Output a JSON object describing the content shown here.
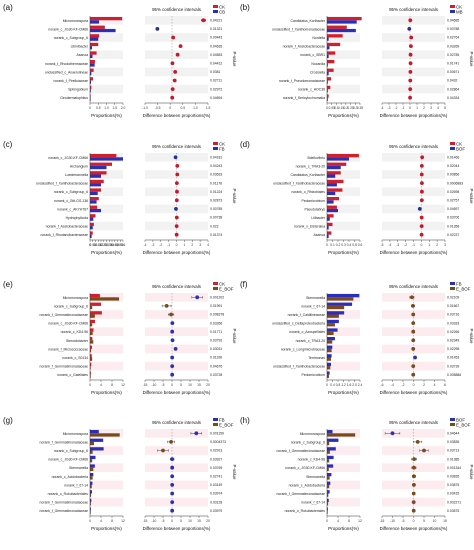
{
  "colors": {
    "red": "#d0202e",
    "blue": "#2b2fb8",
    "brown": "#7a4a1c",
    "pink": "#fbe3e8",
    "gray": "#ececec",
    "sig": "#e14a4a",
    "nonsig": "#444444",
    "ci_dot_left": "#c6182c",
    "ci_dot_right": "#26309b"
  },
  "chart_data": [
    {
      "panel": "(a)",
      "type": "bar",
      "legend": [
        "CK",
        "CB"
      ],
      "ci_title": "95% confidence intervals",
      "x_label": "Proportions(%)",
      "ci_x_label": "Difference between proportions(%)",
      "pvalue_label": "P-value",
      "categories": [
        "Micromonospora",
        "norank_c_JG30-KF-CM66",
        "norank_c_Subgroup_6",
        "Libinibacter",
        "Asanoa",
        "norank_f_Rhodothermaceae",
        "unclassified_c_Anaerolineae",
        "norank_f_Pirellulaceae",
        "Sphingobium",
        "Geodermatophilus"
      ],
      "series": [
        {
          "name": "CK",
          "values": [
            1.95,
            0.9,
            0.55,
            0.5,
            0.4,
            0.3,
            0.22,
            0.18,
            0.08,
            0.04
          ]
        },
        {
          "name": "CB",
          "values": [
            0.55,
            1.55,
            0.5,
            0.12,
            0.15,
            0.28,
            0.08,
            0.06,
            0.05,
            0.03
          ]
        }
      ],
      "xlim": [
        0,
        2.0
      ],
      "xticks": [
        "0",
        "0.5",
        "1.0",
        "1.5",
        "2.0"
      ],
      "ci": [
        1.4,
        -0.65,
        0.05,
        0.38,
        0.25,
        0.02,
        0.14,
        0.12,
        0.03,
        0.01
      ],
      "ci_err": [
        0.1,
        0.06,
        0.05,
        0.05,
        0.05,
        0.04,
        0.04,
        0.04,
        0.02,
        0.02
      ],
      "ci_xlim": [
        -1.2,
        1.6
      ],
      "ci_xticks": [
        "-1.0",
        "-0.5",
        "0",
        "0.5",
        "1.0",
        "1.5"
      ],
      "pvalues": [
        "0.04221",
        "0.01321",
        "0.00443",
        "0.04635",
        "0.04553",
        "0.04412",
        "0.0381",
        "0.02711",
        "0.02972",
        "0.04694"
      ],
      "sig": [
        true,
        true,
        true,
        true,
        true,
        true,
        true,
        true,
        true,
        true
      ]
    },
    {
      "panel": "(b)",
      "type": "bar",
      "legend": [
        "CK",
        "MB"
      ],
      "ci_title": "95% confidence intervals",
      "x_label": "Proportions(%)",
      "ci_x_label": "Difference between proportions(%)",
      "pvalue_label": "P-value",
      "categories": [
        "Candidatus_Koribacter",
        "unclassified_f_Xanthomonadaceae",
        "Nordella",
        "norank_f_Acetobacteraceae",
        "norank_c_SBR1",
        "Nocardia",
        "Crossiella",
        "norank_f_Pseudomonadaceae",
        "norank_c_HOC36",
        "norank_f_Sericytochromatia"
      ],
      "series": [
        {
          "name": "CK",
          "values": [
            0.42,
            0.24,
            0.19,
            0.16,
            0.1,
            0.09,
            0.08,
            0.05,
            0.04,
            0.02
          ]
        },
        {
          "name": "MB",
          "values": [
            0.36,
            0.35,
            0.02,
            0.03,
            0.02,
            0.01,
            0.02,
            0.01,
            0.01,
            0.01
          ]
        }
      ],
      "xlim": [
        0,
        0.4
      ],
      "xticks": [
        "0",
        "0.05",
        "0.1",
        "0.15",
        "0.2",
        "0.25",
        "0.3",
        "0.35"
      ],
      "ci": [
        0.04,
        -0.1,
        0.17,
        0.13,
        0.08,
        0.08,
        0.06,
        0.04,
        0.03,
        0.01
      ],
      "ci_err": [
        0.03,
        0.03,
        0.02,
        0.02,
        0.02,
        0.02,
        0.02,
        0.02,
        0.02,
        0.01
      ],
      "ci_xlim": [
        -4,
        5
      ],
      "ci_xticks": [
        "-4",
        "-3",
        "-2",
        "-1",
        "0",
        "1",
        "2",
        "3",
        "4",
        "5"
      ],
      "pvalues": [
        "0.04685",
        "0.00788",
        "0.02764",
        "0.03269",
        "0.02785",
        "0.01741",
        "0.00671",
        "0.0432",
        "0.02864",
        "0.04334"
      ],
      "sig": [
        true,
        true,
        true,
        true,
        true,
        true,
        true,
        true,
        true,
        true
      ]
    },
    {
      "panel": "(c)",
      "type": "bar",
      "legend": [
        "CK",
        "FB"
      ],
      "ci_title": "95% confidence intervals",
      "x_label": "Proportions(%)",
      "ci_x_label": "Difference between proportions(%)",
      "pvalue_label": "P-value",
      "categories": [
        "norank_c_JG30-KF-CM66",
        "Archangium",
        "Luedemannella",
        "unclassified_f_Xanthobacteraceae",
        "norank_c_Subgroup_6",
        "norank_c_Gitt-GS-136",
        "norank_c_AKYH767",
        "Hydrophyticola",
        "norank_f_Acetobacteraceae",
        "norank_f_Rhodanobacteraceae"
      ],
      "series": [
        {
          "name": "CK",
          "values": [
            0.48,
            0.4,
            0.3,
            0.25,
            0.2,
            0.16,
            0.13,
            0.1,
            0.07,
            0.05
          ]
        },
        {
          "name": "FB",
          "values": [
            0.6,
            0.3,
            0.2,
            0.2,
            0.14,
            0.12,
            0.2,
            0.06,
            0.05,
            0.03
          ]
        }
      ],
      "xlim": [
        0,
        0.6
      ],
      "xticks": [
        "0",
        "0.05",
        "0.1",
        "0.15",
        "0.2",
        "0.25",
        "0.3",
        "0.35",
        "0.4",
        "0.45",
        "0.5",
        "0.55",
        "0.6"
      ],
      "ci": [
        -0.12,
        0.1,
        0.1,
        0.05,
        0.06,
        0.04,
        -0.07,
        0.04,
        0.02,
        0.02
      ],
      "ci_err": [
        0.04,
        0.03,
        0.03,
        0.02,
        0.02,
        0.02,
        0.02,
        0.02,
        0.02,
        0.01
      ],
      "ci_xlim": [
        -4,
        4
      ],
      "ci_xticks": [
        "-4",
        "-3",
        "-2",
        "-1",
        "0",
        "1",
        "2",
        "3",
        "4"
      ],
      "pvalues": [
        "0.04181",
        "0.04243",
        "0.03633",
        "0.01178",
        "0.01224",
        "0.02873",
        "0.00785",
        "0.00738",
        "0.022",
        "0.01374"
      ],
      "sig": [
        true,
        true,
        true,
        true,
        true,
        true,
        true,
        true,
        true,
        true
      ]
    },
    {
      "panel": "(d)",
      "type": "bar",
      "legend": [
        "CK",
        "BOF"
      ],
      "ci_title": "95% confidence intervals",
      "x_label": "Proportions(%)",
      "ci_x_label": "Difference between proportions(%)",
      "pvalue_label": "P-value",
      "categories": [
        "Bdellovibrio",
        "norank_c_TRA3-20",
        "Candidatus_Koribacter",
        "unclassified_f_Xanthobacteraceae",
        "norank_o_Rhizobiales",
        "Pedomicrobium",
        "Pseudolabrys",
        "Lilibacter",
        "norank_o_Elsteralea",
        "Asanoa"
      ],
      "series": [
        {
          "name": "CK",
          "values": [
            0.58,
            0.35,
            0.25,
            0.3,
            0.28,
            0.22,
            0.18,
            0.12,
            0.1,
            0.08
          ]
        },
        {
          "name": "BOF",
          "values": [
            0.4,
            0.25,
            0.15,
            0.18,
            0.15,
            0.12,
            0.2,
            0.05,
            0.03,
            0.03
          ]
        }
      ],
      "xlim": [
        0,
        0.6
      ],
      "xticks": [
        "0",
        "0.1",
        "0.2",
        "0.3",
        "0.4",
        "0.5",
        "0.6"
      ],
      "ci": [
        0.1,
        0.06,
        0.05,
        0.07,
        0.07,
        0.06,
        -0.2,
        0.04,
        0.04,
        0.03
      ],
      "ci_err": [
        0.04,
        0.03,
        0.03,
        0.03,
        0.03,
        0.03,
        0.03,
        0.02,
        0.02,
        0.02
      ],
      "ci_xlim": [
        -5,
        3
      ],
      "ci_xticks": [
        "-5",
        "-4",
        "-3",
        "-2",
        "-1",
        "0",
        "1",
        "2",
        "3"
      ],
      "pvalues": [
        "0.01466",
        "0.02044",
        "0.00856",
        "0.0006883",
        "0.02698",
        "0.02757",
        "0.04697",
        "0.03706",
        "0.01358",
        "0.02237"
      ],
      "sig": [
        true,
        true,
        true,
        true,
        true,
        true,
        true,
        true,
        true,
        true
      ]
    },
    {
      "panel": "(e)",
      "type": "bar",
      "legend": [
        "CK",
        "E_BOF"
      ],
      "ci_title": "95% confidence intervals",
      "x_label": "Proportions(%)",
      "ci_x_label": "Difference between proportions(%)",
      "pvalue_label": "P-value",
      "categories": [
        "Micromonospora",
        "norank_c_Subgroup_6",
        "norank_f_Gemmatimonadaceae",
        "norank_c_JG30-KF-CM66",
        "norank_c_KD4-96",
        "Steroidobacter",
        "norank_f_Micrococcaceae",
        "norank_c_S0134",
        "norank_f_Gemmatimonadaceae",
        "norank_c_Gaiellales"
      ],
      "series": [
        {
          "name": "CK",
          "values": [
            4.5,
            5.0,
            5.4,
            2.3,
            1.6,
            1.1,
            0.9,
            0.8,
            0.6,
            0.4
          ]
        },
        {
          "name": "E_BOF",
          "values": [
            13.2,
            1.0,
            2.2,
            1.0,
            1.2,
            1.5,
            0.5,
            1.0,
            0.3,
            0.3
          ]
        }
      ],
      "xlim": [
        0,
        15
      ],
      "xticks": [
        "0",
        "4",
        "8",
        "12"
      ],
      "ci": [
        14,
        -3,
        -0.5,
        0.2,
        0.1,
        0.3,
        2.0,
        0.1,
        0.1,
        0.1
      ],
      "ci_err": [
        3,
        2.5,
        1.5,
        0.8,
        0.6,
        0.6,
        0.6,
        0.5,
        0.5,
        0.4
      ],
      "ci_xlim": [
        -15,
        20
      ],
      "ci_xticks": [
        "-15",
        "-10",
        "-5",
        "0",
        "5",
        "10",
        "15",
        "20"
      ],
      "pvalues": [
        "0.001202",
        "0.01991",
        "0.008378",
        "0.03266",
        "0.01771",
        "0.03792",
        "0.03031",
        "0.01108",
        "0.04676",
        "0.03728"
      ],
      "sig": [
        true,
        true,
        true,
        true,
        true,
        true,
        true,
        true,
        true,
        true
      ]
    },
    {
      "panel": "(f)",
      "type": "bar",
      "legend": [
        "FB",
        "E_BOF"
      ],
      "ci_title": "95% confidence intervals",
      "x_label": "Proportions(%)",
      "ci_x_label": "Difference between proportions(%)",
      "pvalue_label": "P-value",
      "categories": [
        "Stenmanella",
        "norank_f_67-14",
        "norank_f_Caldilineaceae",
        "unclassified_c_Deltaproteobacteria",
        "norank_o_Azospirillales",
        "norank_c_TRA3-20",
        "norank_c_Longimicrobiaceae",
        "Terrimonas",
        "unclassified_f_Xanthobacteraceae",
        "Pedomicrobium"
      ],
      "series": [
        {
          "name": "FB",
          "values": [
            2.45,
            1.9,
            1.3,
            0.9,
            0.8,
            0.6,
            0.4,
            0.35,
            0.3,
            0.2
          ]
        },
        {
          "name": "E_BOF",
          "values": [
            2.0,
            1.3,
            0.9,
            0.6,
            0.5,
            0.4,
            0.35,
            0.3,
            0.25,
            0.15
          ]
        }
      ],
      "xlim": [
        0,
        2.5
      ],
      "xticks": [
        "0",
        "0.4",
        "0.8",
        "1.2",
        "1.6",
        "2.0",
        "2.4"
      ],
      "ci": [
        -0.3,
        -0.1,
        -0.05,
        -0.05,
        -0.05,
        -0.05,
        -0.05,
        0.3,
        -0.05,
        -0.05
      ],
      "ci_err": [
        0.4,
        0.3,
        0.2,
        0.2,
        0.2,
        0.2,
        0.2,
        0.2,
        0.15,
        0.15
      ],
      "ci_xlim": [
        -6,
        6
      ],
      "ci_xticks": [
        "-6",
        "-4",
        "-2",
        "0",
        "2",
        "4",
        "6"
      ],
      "pvalues": [
        "0.02109",
        "0.01667",
        "0.03716",
        "0.03333",
        "0.02266",
        "0.02349",
        "0.02298",
        "0.01453",
        "0.03739",
        "0.005886"
      ],
      "sig": [
        true,
        true,
        true,
        true,
        true,
        true,
        true,
        true,
        true,
        true
      ]
    },
    {
      "panel": "(g)",
      "type": "bar",
      "legend": [
        "FB",
        "E_BOF"
      ],
      "ci_title": "95% confidence intervals",
      "x_label": "Proportions(%)",
      "ci_x_label": "Difference between proportions(%)",
      "pvalue_label": "P-value",
      "categories": [
        "Micromonospora",
        "norank_f_Gemmatimonadaceae",
        "norank_c_Subgroup_6",
        "norank_c_JG30-KF-CM66",
        "Stenmanella",
        "norank_c_Acidobacteria",
        "norank_f_67-14",
        "norank_o_Rokubacteriales",
        "norank_f_Gemmatimonadaceae",
        "norank_f_Gemmatimonadaceae"
      ],
      "series": [
        {
          "name": "FB",
          "values": [
            4.0,
            6.0,
            6.2,
            2.5,
            2.2,
            1.5,
            1.1,
            0.9,
            0.6,
            0.4
          ]
        },
        {
          "name": "E_BOF",
          "values": [
            13.5,
            1.8,
            1.2,
            1.0,
            1.5,
            1.2,
            0.8,
            0.5,
            0.4,
            0.3
          ]
        }
      ],
      "xlim": [
        0,
        15
      ],
      "xticks": [
        "0",
        "4",
        "8",
        "12"
      ],
      "ci": [
        13.5,
        -0.5,
        -5,
        0.1,
        0.1,
        0.1,
        0.1,
        0.1,
        0.1,
        0.1
      ],
      "ci_err": [
        3,
        2,
        3,
        1,
        0.8,
        0.6,
        0.6,
        0.5,
        0.5,
        0.4
      ],
      "ci_xlim": [
        -15,
        20
      ],
      "ci_xticks": [
        "-15",
        "-10",
        "-5",
        "0",
        "5",
        "10",
        "15",
        "20"
      ],
      "pvalues": [
        "0.001159",
        "0.0004373",
        "0.02913",
        "0.03927",
        "0.03769",
        "0.02741",
        "0.03149",
        "0.03974",
        "0.03128",
        "0.03979"
      ],
      "sig": [
        true,
        true,
        true,
        true,
        true,
        true,
        true,
        true,
        true,
        true
      ]
    },
    {
      "panel": "(h)",
      "type": "bar",
      "legend": [
        "BOF",
        "E_BOF"
      ],
      "ci_title": "95% confidence intervals",
      "x_label": "Proportions(%)",
      "ci_x_label": "Difference between proportions(%)",
      "pvalue_label": "P-value",
      "categories": [
        "Micromonospora",
        "norank_c_Subgroup_6",
        "norank_f_Gemmatimonadaceae",
        "norank_c_KD4-96",
        "norank_c_JG30-KF-CM66",
        "Stenmanella",
        "norank_c_Acidobacteria",
        "norank_f_Gemmatimonadaceae",
        "norank_f_67-14",
        "norank_o_Rokubacteriales"
      ],
      "series": [
        {
          "name": "BOF",
          "values": [
            2.5,
            5.2,
            4.0,
            3.0,
            2.8,
            2.0,
            1.5,
            1.2,
            0.8,
            0.4
          ]
        },
        {
          "name": "E_BOF",
          "values": [
            12.8,
            1.0,
            1.3,
            1.0,
            0.8,
            1.2,
            1.0,
            0.6,
            0.5,
            0.3
          ]
        }
      ],
      "xlim": [
        0,
        15
      ],
      "xticks": [
        "0",
        "4",
        "8",
        "12"
      ],
      "ci": [
        -10,
        2,
        5,
        0.3,
        0.2,
        0.2,
        0.2,
        0.1,
        0.1,
        0.1
      ],
      "ci_err": [
        3.5,
        2,
        2,
        1.2,
        1,
        0.8,
        0.6,
        0.5,
        0.5,
        0.4
      ],
      "ci_xlim": [
        -15,
        15
      ],
      "ci_xticks": [
        "-15",
        "-10",
        "-5",
        "0",
        "5",
        "10",
        "15"
      ],
      "pvalues": [
        "0.04644",
        "0.03835",
        "0.03713",
        "0.01385",
        "0.001344",
        "0.03835",
        "0.03875",
        "0.03415",
        "0.002271",
        "0.03575"
      ],
      "sig": [
        true,
        true,
        true,
        true,
        true,
        true,
        true,
        true,
        true,
        true
      ]
    }
  ]
}
